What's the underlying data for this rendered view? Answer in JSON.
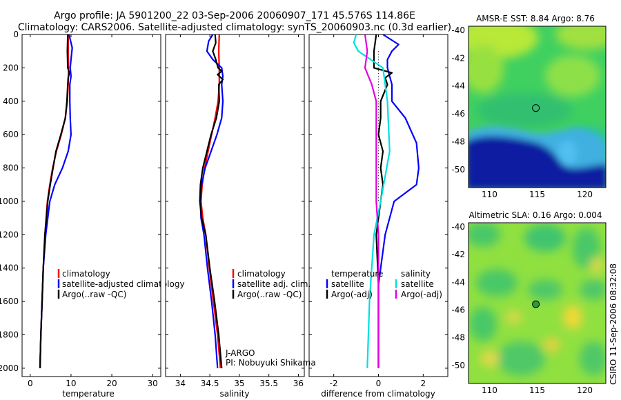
{
  "header": {
    "line1": "Argo profile: JA 5901200_22 03-Sep-2006 20060907_171 45.576S 114.86E",
    "line2": "Climatology: CARS2006. Satellite-adjusted climatology: synTS_20060903.nc (0.3d earlier)"
  },
  "side_label": "CSIRO 11-Sep-2006 08:32:08",
  "credits": {
    "program": "J-ARGO",
    "pi": "PI: Nobuyuki Shikama"
  },
  "colors": {
    "climatology": "#ff0000",
    "satellite": "#0000ff",
    "argo": "#000000",
    "sat_salinity": "#00e0e0",
    "argo_salinity": "#e000e0"
  },
  "chart_data": [
    {
      "id": "temperature",
      "type": "line",
      "xlabel": "temperature",
      "ylabel": "",
      "xlim": [
        -2,
        32
      ],
      "ylim": [
        2050,
        0
      ],
      "xticks": [
        0,
        10,
        20,
        30
      ],
      "yticks": [
        0,
        200,
        400,
        600,
        800,
        1000,
        1200,
        1400,
        1600,
        1800,
        2000
      ],
      "legend": {
        "position": "lower-right",
        "entries": [
          "climatology",
          "satellite-adjusted climatology",
          "Argo(..raw -QC)"
        ]
      },
      "series": [
        {
          "name": "climatology",
          "color": "#ff0000",
          "points": [
            [
              9.3,
              0
            ],
            [
              9.3,
              100
            ],
            [
              9.4,
              200
            ],
            [
              9.3,
              300
            ],
            [
              9.1,
              400
            ],
            [
              8.6,
              500
            ],
            [
              7.6,
              600
            ],
            [
              6.4,
              700
            ],
            [
              5.5,
              800
            ],
            [
              4.8,
              900
            ],
            [
              4.2,
              1000
            ],
            [
              3.6,
              1200
            ],
            [
              3.2,
              1400
            ],
            [
              2.9,
              1600
            ],
            [
              2.6,
              1800
            ],
            [
              2.4,
              2000
            ]
          ]
        },
        {
          "name": "satellite-adjusted climatology",
          "color": "#0000ff",
          "points": [
            [
              9.5,
              0
            ],
            [
              10.3,
              80
            ],
            [
              10.0,
              150
            ],
            [
              9.8,
              200
            ],
            [
              10.0,
              250
            ],
            [
              9.7,
              300
            ],
            [
              9.7,
              400
            ],
            [
              9.8,
              500
            ],
            [
              10.0,
              600
            ],
            [
              9.3,
              700
            ],
            [
              7.9,
              800
            ],
            [
              6.0,
              900
            ],
            [
              4.8,
              1000
            ],
            [
              3.8,
              1200
            ],
            [
              3.2,
              1400
            ],
            [
              2.9,
              1600
            ],
            [
              2.6,
              1800
            ],
            [
              2.4,
              2000
            ]
          ]
        },
        {
          "name": "Argo(..raw -QC)",
          "color": "#000000",
          "points": [
            [
              9.2,
              0
            ],
            [
              9.1,
              100
            ],
            [
              9.2,
              200
            ],
            [
              9.6,
              230
            ],
            [
              9.3,
              260
            ],
            [
              9.2,
              300
            ],
            [
              9.0,
              400
            ],
            [
              8.6,
              500
            ],
            [
              7.5,
              600
            ],
            [
              6.3,
              700
            ],
            [
              5.6,
              800
            ],
            [
              4.9,
              900
            ],
            [
              4.3,
              1000
            ],
            [
              3.6,
              1200
            ],
            [
              3.2,
              1400
            ],
            [
              2.9,
              1600
            ],
            [
              2.6,
              1800
            ],
            [
              2.4,
              2000
            ]
          ]
        }
      ]
    },
    {
      "id": "salinity",
      "type": "line",
      "xlabel": "salinity",
      "ylabel": "",
      "xlim": [
        33.75,
        36.1
      ],
      "ylim": [
        2050,
        0
      ],
      "xticks": [
        34,
        34.5,
        35,
        35.5,
        36
      ],
      "legend": {
        "position": "lower-right",
        "entries": [
          "climatology",
          "satellite adj. clim.",
          "Argo(..raw -QC)"
        ]
      },
      "series": [
        {
          "name": "climatology",
          "color": "#ff0000",
          "points": [
            [
              34.66,
              0
            ],
            [
              34.65,
              100
            ],
            [
              34.66,
              200
            ],
            [
              34.66,
              300
            ],
            [
              34.64,
              400
            ],
            [
              34.59,
              500
            ],
            [
              34.53,
              600
            ],
            [
              34.47,
              700
            ],
            [
              34.41,
              800
            ],
            [
              34.37,
              900
            ],
            [
              34.35,
              1000
            ],
            [
              34.38,
              1100
            ],
            [
              34.43,
              1200
            ],
            [
              34.49,
              1400
            ],
            [
              34.56,
              1600
            ],
            [
              34.63,
              1800
            ],
            [
              34.68,
              2000
            ]
          ]
        },
        {
          "name": "satellite adj. clim.",
          "color": "#0000ff",
          "points": [
            [
              34.55,
              0
            ],
            [
              34.48,
              40
            ],
            [
              34.45,
              100
            ],
            [
              34.55,
              150
            ],
            [
              34.7,
              200
            ],
            [
              34.72,
              250
            ],
            [
              34.7,
              300
            ],
            [
              34.72,
              400
            ],
            [
              34.7,
              500
            ],
            [
              34.62,
              600
            ],
            [
              34.52,
              700
            ],
            [
              34.42,
              800
            ],
            [
              34.36,
              900
            ],
            [
              34.34,
              1000
            ],
            [
              34.35,
              1100
            ],
            [
              34.4,
              1200
            ],
            [
              34.46,
              1400
            ],
            [
              34.53,
              1600
            ],
            [
              34.59,
              1800
            ],
            [
              34.63,
              2000
            ]
          ]
        },
        {
          "name": "Argo(..raw -QC)",
          "color": "#000000",
          "points": [
            [
              34.59,
              0
            ],
            [
              34.6,
              50
            ],
            [
              34.55,
              100
            ],
            [
              34.6,
              150
            ],
            [
              34.64,
              200
            ],
            [
              34.7,
              220
            ],
            [
              34.63,
              240
            ],
            [
              34.72,
              270
            ],
            [
              34.65,
              300
            ],
            [
              34.66,
              400
            ],
            [
              34.61,
              500
            ],
            [
              34.52,
              600
            ],
            [
              34.45,
              700
            ],
            [
              34.38,
              800
            ],
            [
              34.34,
              900
            ],
            [
              34.33,
              1000
            ],
            [
              34.36,
              1100
            ],
            [
              34.43,
              1200
            ],
            [
              34.5,
              1400
            ],
            [
              34.58,
              1600
            ],
            [
              34.65,
              1800
            ],
            [
              34.7,
              2000
            ]
          ]
        }
      ]
    },
    {
      "id": "difference",
      "type": "line",
      "xlabel": "difference from climatology",
      "ylabel": "",
      "xlim": [
        -3.1,
        3.1
      ],
      "ylim": [
        2050,
        0
      ],
      "xticks": [
        -2,
        0,
        2
      ],
      "legend": {
        "position": "lower-center",
        "groups": [
          {
            "title": "temperature",
            "entries": [
              "satellite",
              "Argo(-adj)"
            ]
          },
          {
            "title": "salinity",
            "entries": [
              "satellite",
              "Argo(-adj)"
            ]
          }
        ]
      },
      "series": [
        {
          "name": "satellite",
          "group": "temperature",
          "color": "#0000ff",
          "points": [
            [
              0.2,
              0
            ],
            [
              0.9,
              60
            ],
            [
              0.6,
              100
            ],
            [
              0.4,
              150
            ],
            [
              0.4,
              200
            ],
            [
              0.6,
              300
            ],
            [
              0.6,
              400
            ],
            [
              1.2,
              500
            ],
            [
              1.7,
              650
            ],
            [
              1.8,
              800
            ],
            [
              1.7,
              900
            ],
            [
              0.7,
              1000
            ],
            [
              0.5,
              1100
            ],
            [
              0.3,
              1200
            ],
            [
              0,
              1500
            ],
            [
              0,
              2000
            ]
          ]
        },
        {
          "name": "Argo(-adj)",
          "group": "temperature",
          "color": "#000000",
          "points": [
            [
              -0.1,
              0
            ],
            [
              -0.2,
              100
            ],
            [
              -0.2,
              200
            ],
            [
              0.6,
              230
            ],
            [
              0.3,
              260
            ],
            [
              0.4,
              300
            ],
            [
              0.1,
              400
            ],
            [
              0.1,
              500
            ],
            [
              0.0,
              600
            ],
            [
              0.2,
              700
            ],
            [
              0.1,
              800
            ],
            [
              0.2,
              900
            ],
            [
              0.1,
              1000
            ],
            [
              0.0,
              1100
            ],
            [
              -0.1,
              1200
            ],
            [
              0,
              1500
            ],
            [
              0,
              2000
            ]
          ]
        },
        {
          "name": "satellite",
          "group": "salinity",
          "color": "#00e0e0",
          "points": [
            [
              -1.0,
              0
            ],
            [
              -1.1,
              50
            ],
            [
              -0.9,
              100
            ],
            [
              0.2,
              200
            ],
            [
              0.4,
              400
            ],
            [
              0.5,
              700
            ],
            [
              0.1,
              1000
            ],
            [
              -0.2,
              1200
            ],
            [
              -0.4,
              1600
            ],
            [
              -0.5,
              2000
            ]
          ]
        },
        {
          "name": "Argo(-adj)",
          "group": "salinity",
          "color": "#e000e0",
          "points": [
            [
              -0.6,
              0
            ],
            [
              -0.5,
              100
            ],
            [
              -0.6,
              200
            ],
            [
              -0.3,
              300
            ],
            [
              -0.1,
              400
            ],
            [
              -0.1,
              1000
            ],
            [
              0.0,
              1200
            ],
            [
              0.0,
              1600
            ],
            [
              0.0,
              2000
            ]
          ]
        }
      ]
    },
    {
      "id": "sst-map",
      "type": "heatmap",
      "title": "AMSR-E SST: 8.84 Argo: 8.76",
      "xticks": [
        110,
        115,
        120
      ],
      "yticks": [
        -40,
        -42,
        -44,
        -46,
        -48,
        -50
      ],
      "xlim": [
        107.8,
        122.2
      ],
      "ylim": [
        -51.3,
        -39.7
      ],
      "float_position": [
        114.86,
        -45.58
      ]
    },
    {
      "id": "sla-map",
      "type": "heatmap",
      "title": "Altimetric SLA: 0.16 Argo: 0.004",
      "xticks": [
        110,
        115,
        120
      ],
      "yticks": [
        -40,
        -42,
        -44,
        -46,
        -48,
        -50
      ],
      "xlim": [
        107.8,
        122.2
      ],
      "ylim": [
        -51.3,
        -39.7
      ],
      "float_position": [
        114.86,
        -45.58
      ]
    }
  ]
}
